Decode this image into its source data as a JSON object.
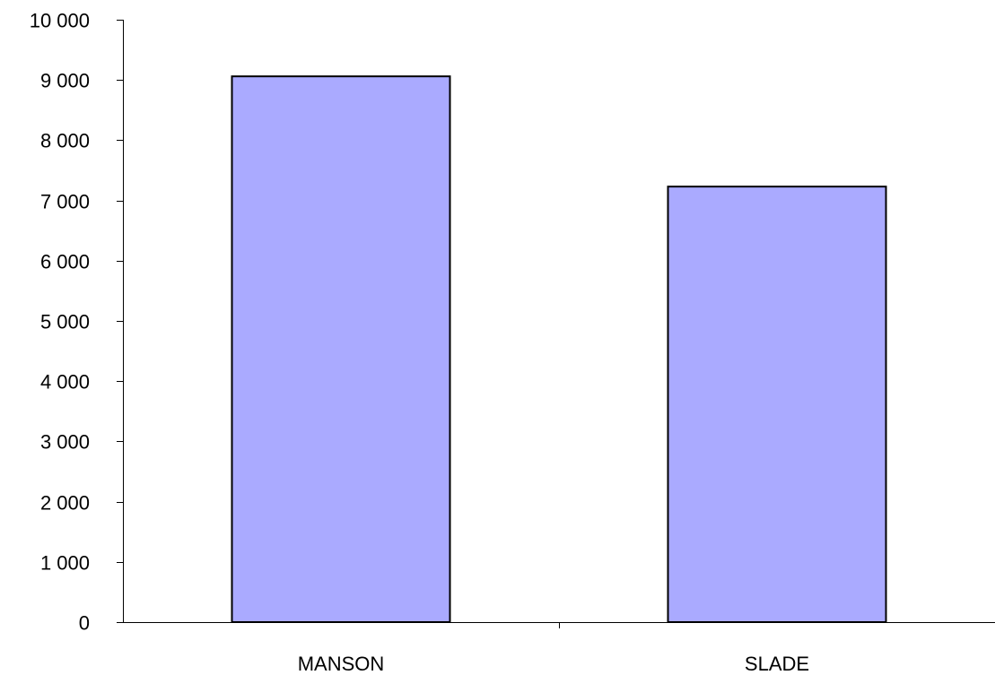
{
  "chart_data": {
    "type": "bar",
    "categories": [
      "MANSON",
      "SLADE"
    ],
    "values": [
      9060,
      7230
    ],
    "ylim": [
      0,
      10000
    ],
    "yticks": [
      0,
      1000,
      2000,
      3000,
      4000,
      5000,
      6000,
      7000,
      8000,
      9000,
      10000
    ],
    "ytick_labels": [
      "0",
      "1 000",
      "2 000",
      "3 000",
      "4 000",
      "5 000",
      "6 000",
      "7 000",
      "8 000",
      "9 000",
      "10 000"
    ],
    "title": "",
    "xlabel": "",
    "ylabel": "",
    "grid": false,
    "legend": "none",
    "colors": {
      "bar_fill": "#aaaaff",
      "bar_stroke": "#000000",
      "axis": "#000000",
      "text": "#000000"
    }
  }
}
